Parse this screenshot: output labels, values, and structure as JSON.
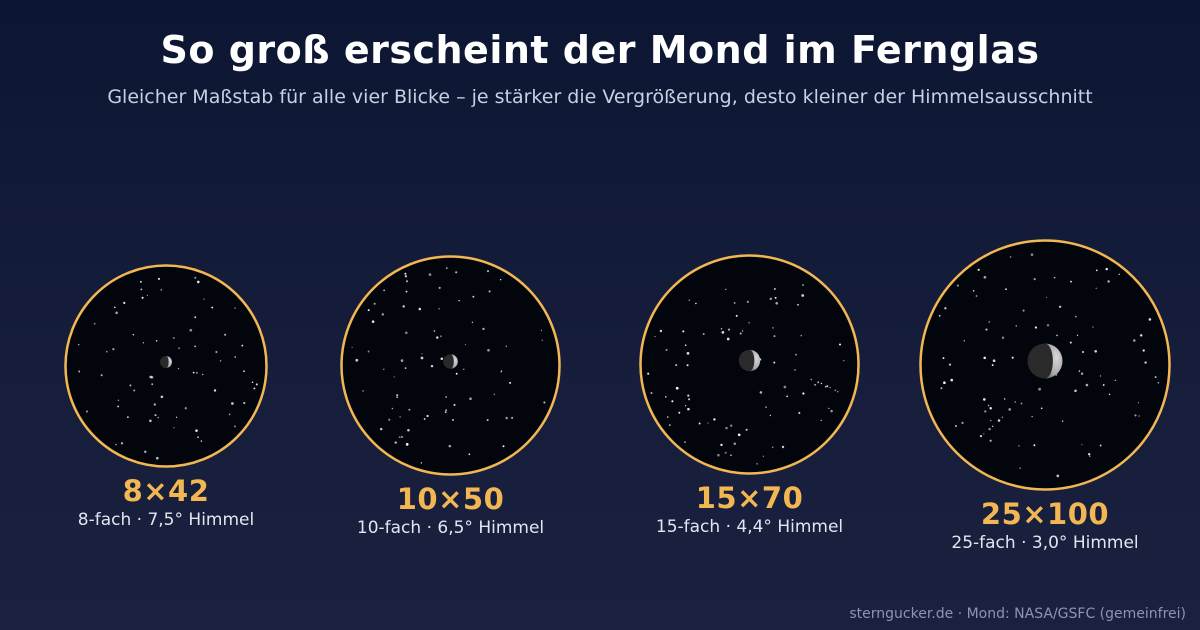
{
  "header": {
    "title": "So groß erscheint der Mond im Fernglas",
    "subtitle": "Gleicher Maßstab für alle vier Blicke – je stärker die Vergrößerung, desto kleiner der Himmelsausschnitt"
  },
  "colors": {
    "ring": "#f2b752",
    "sky": "#03050c",
    "star": "#ffffff",
    "moon_light": "#d8d8d8",
    "moon_dark": "#6f6f6f"
  },
  "views": [
    {
      "model": "8×42",
      "desc": "8-fach · 7,5° Himmel",
      "magnification": 8,
      "field_deg": 7.5,
      "moon": "waxing-gibbous-moon"
    },
    {
      "model": "10×50",
      "desc": "10-fach · 6,5° Himmel",
      "magnification": 10,
      "field_deg": 6.5,
      "moon": "waxing-gibbous-moon"
    },
    {
      "model": "15×70",
      "desc": "15-fach · 4,4° Himmel",
      "magnification": 15,
      "field_deg": 4.4,
      "moon": "waxing-gibbous-moon"
    },
    {
      "model": "25×100",
      "desc": "25-fach · 3,0° Himmel",
      "magnification": 25,
      "field_deg": 3.0,
      "moon": "waxing-gibbous-moon"
    }
  ],
  "footer": {
    "credit": "sterngucker.de · Mond: NASA/GSFC (gemeinfrei)"
  }
}
